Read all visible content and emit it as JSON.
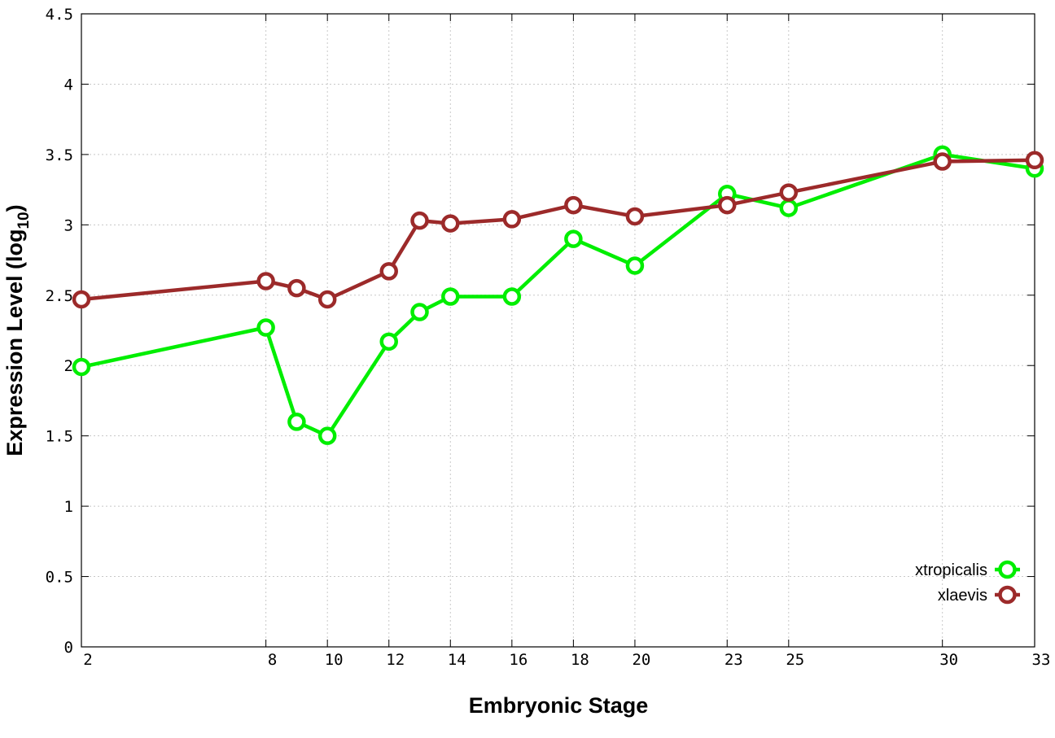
{
  "chart_data": {
    "type": "line",
    "xlabel": "Embryonic Stage",
    "ylabel": {
      "main": "Expression Level (log",
      "sub": "10",
      "close": ")"
    },
    "xlim": [
      2,
      33
    ],
    "ylim": [
      0,
      4.5
    ],
    "xticks": [
      2,
      8,
      10,
      12,
      14,
      16,
      18,
      20,
      23,
      25,
      30,
      33
    ],
    "yticks": [
      0,
      0.5,
      1,
      1.5,
      2,
      2.5,
      3,
      3.5,
      4,
      4.5
    ],
    "ytick_labels": [
      "0",
      "0.5",
      "1",
      "1.5",
      "2",
      "2.5",
      "3",
      "3.5",
      "4",
      "4.5"
    ],
    "grid": true,
    "legend_position": "bottom-right",
    "series": [
      {
        "name": "xtropicalis",
        "color": "#00ee00",
        "x": [
          2,
          8,
          9,
          10,
          12,
          13,
          14,
          16,
          18,
          20,
          23,
          25,
          30,
          33
        ],
        "y": [
          1.99,
          2.27,
          1.6,
          1.5,
          2.17,
          2.38,
          2.49,
          2.49,
          2.9,
          2.71,
          3.22,
          3.12,
          3.5,
          3.4
        ]
      },
      {
        "name": "xlaevis",
        "color": "#9c2a2a",
        "x": [
          2,
          8,
          9,
          10,
          12,
          13,
          14,
          16,
          18,
          20,
          23,
          25,
          30,
          33
        ],
        "y": [
          2.47,
          2.6,
          2.55,
          2.47,
          2.67,
          3.03,
          3.01,
          3.04,
          3.14,
          3.06,
          3.14,
          3.23,
          3.45,
          3.46
        ]
      }
    ]
  }
}
